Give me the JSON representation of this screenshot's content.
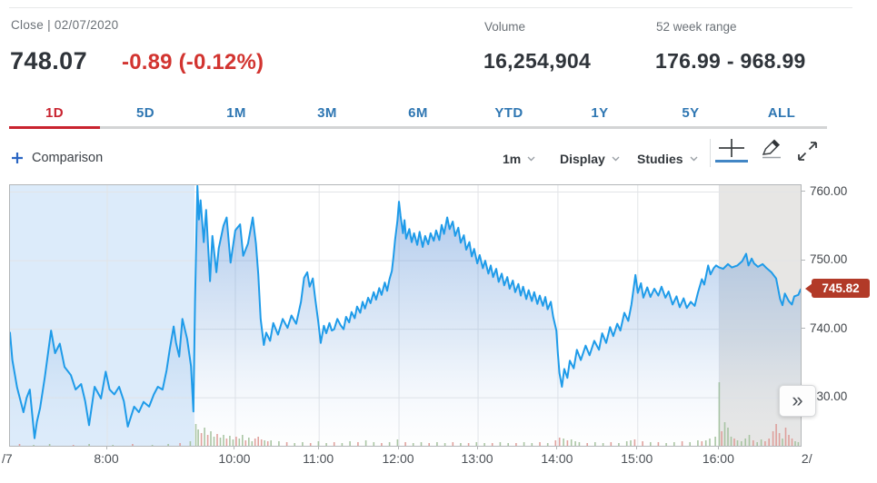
{
  "header": {
    "close_label": "Close | 02/07/2020",
    "price": "748.07",
    "change": "-0.89 (-0.12%)",
    "volume_label": "Volume",
    "volume_value": "16,254,904",
    "range_label": "52 week range",
    "range_value": "176.99 - 968.99"
  },
  "tabs": {
    "items": [
      "1D",
      "5D",
      "1M",
      "3M",
      "6M",
      "YTD",
      "1Y",
      "5Y",
      "ALL"
    ],
    "active_index": 0
  },
  "toolbar": {
    "comparison_label": "Comparison",
    "interval_label": "1m",
    "display_label": "Display",
    "studies_label": "Studies"
  },
  "panel_toggle_glyph": "»",
  "colors": {
    "accent_red": "#c9232f",
    "tab_blue": "#2e76b2",
    "change_red": "#d23430",
    "line_blue": "#1e9be9",
    "badge_red": "#b23a28",
    "premarket_bg": "#dcebfa",
    "afterhours_bg": "#e7e6e4",
    "grid": "#e2e4e7",
    "volume_up": "#9cbd94",
    "volume_down": "#dd918c"
  },
  "chart_data": {
    "type": "line",
    "title": "1D intraday price chart, 1m interval",
    "last_price": 745.82,
    "last_price_label": "745.82",
    "ylim": [
      723,
      761
    ],
    "y_ticks": [
      {
        "label": "760.00",
        "value": 760
      },
      {
        "label": "750.00",
        "value": 750
      },
      {
        "label": "740.00",
        "value": 740
      },
      {
        "label": "730.00",
        "value": 730
      }
    ],
    "x_ticks": [
      {
        "label": "/7",
        "pct": 0.002,
        "grid": false,
        "edge": "left"
      },
      {
        "label": "8:00",
        "pct": 0.123,
        "grid": true
      },
      {
        "label": "10:00",
        "pct": 0.285,
        "grid": true
      },
      {
        "label": "11:00",
        "pct": 0.391,
        "grid": true
      },
      {
        "label": "12:00",
        "pct": 0.492,
        "grid": true
      },
      {
        "label": "13:00",
        "pct": 0.592,
        "grid": true
      },
      {
        "label": "14:00",
        "pct": 0.693,
        "grid": true
      },
      {
        "label": "15:00",
        "pct": 0.794,
        "grid": true
      },
      {
        "label": "16:00",
        "pct": 0.897,
        "grid": true
      },
      {
        "label": "2/",
        "pct": 1.016,
        "grid": false,
        "edge": "right"
      }
    ],
    "sessions": {
      "premarket_end_pct": 0.2333,
      "afterhours_start_pct": 0.8966
    },
    "series_pct_price": [
      [
        0.0,
        739.5
      ],
      [
        0.003,
        735.5
      ],
      [
        0.009,
        731.5
      ],
      [
        0.017,
        727.9
      ],
      [
        0.021,
        730.0
      ],
      [
        0.025,
        731.2
      ],
      [
        0.031,
        724.1
      ],
      [
        0.034,
        726.5
      ],
      [
        0.038,
        728.5
      ],
      [
        0.044,
        733.0
      ],
      [
        0.052,
        739.8
      ],
      [
        0.057,
        736.5
      ],
      [
        0.063,
        737.9
      ],
      [
        0.069,
        734.5
      ],
      [
        0.077,
        733.3
      ],
      [
        0.083,
        731.2
      ],
      [
        0.09,
        732.0
      ],
      [
        0.095,
        729.5
      ],
      [
        0.1,
        726.0
      ],
      [
        0.107,
        731.6
      ],
      [
        0.115,
        729.9
      ],
      [
        0.121,
        733.8
      ],
      [
        0.126,
        731.2
      ],
      [
        0.132,
        730.5
      ],
      [
        0.138,
        731.6
      ],
      [
        0.144,
        729.5
      ],
      [
        0.149,
        725.8
      ],
      [
        0.157,
        728.7
      ],
      [
        0.163,
        727.9
      ],
      [
        0.169,
        729.4
      ],
      [
        0.176,
        728.7
      ],
      [
        0.182,
        730.5
      ],
      [
        0.187,
        731.6
      ],
      [
        0.193,
        731.2
      ],
      [
        0.198,
        734.0
      ],
      [
        0.202,
        737.0
      ],
      [
        0.207,
        740.4
      ],
      [
        0.21,
        738.0
      ],
      [
        0.214,
        736.0
      ],
      [
        0.218,
        741.5
      ],
      [
        0.224,
        738.6
      ],
      [
        0.229,
        734.6
      ],
      [
        0.232,
        728.0
      ],
      [
        0.234,
        744.0
      ],
      [
        0.237,
        760.9
      ],
      [
        0.239,
        756.0
      ],
      [
        0.241,
        758.8
      ],
      [
        0.245,
        752.7
      ],
      [
        0.248,
        757.4
      ],
      [
        0.253,
        747.0
      ],
      [
        0.256,
        753.6
      ],
      [
        0.261,
        748.3
      ],
      [
        0.264,
        751.8
      ],
      [
        0.27,
        755.1
      ],
      [
        0.274,
        756.3
      ],
      [
        0.279,
        749.7
      ],
      [
        0.285,
        754.4
      ],
      [
        0.291,
        755.3
      ],
      [
        0.295,
        750.7
      ],
      [
        0.301,
        752.5
      ],
      [
        0.307,
        756.3
      ],
      [
        0.311,
        752.5
      ],
      [
        0.314,
        748.0
      ],
      [
        0.317,
        741.5
      ],
      [
        0.321,
        737.7
      ],
      [
        0.324,
        739.5
      ],
      [
        0.329,
        738.3
      ],
      [
        0.333,
        740.9
      ],
      [
        0.339,
        739.2
      ],
      [
        0.345,
        741.5
      ],
      [
        0.351,
        740.2
      ],
      [
        0.356,
        742.0
      ],
      [
        0.362,
        740.8
      ],
      [
        0.368,
        744.0
      ],
      [
        0.372,
        747.5
      ],
      [
        0.376,
        748.3
      ],
      [
        0.379,
        746.2
      ],
      [
        0.383,
        747.4
      ],
      [
        0.386,
        744.5
      ],
      [
        0.39,
        741.0
      ],
      [
        0.393,
        738.0
      ],
      [
        0.397,
        740.5
      ],
      [
        0.4,
        739.4
      ],
      [
        0.404,
        740.9
      ],
      [
        0.407,
        739.8
      ],
      [
        0.41,
        740.0
      ],
      [
        0.414,
        741.5
      ],
      [
        0.418,
        740.6
      ],
      [
        0.422,
        740.0
      ],
      [
        0.425,
        741.8
      ],
      [
        0.429,
        741.0
      ],
      [
        0.432,
        742.5
      ],
      [
        0.436,
        741.6
      ],
      [
        0.439,
        743.3
      ],
      [
        0.443,
        742.4
      ],
      [
        0.446,
        744.0
      ],
      [
        0.449,
        743.0
      ],
      [
        0.453,
        744.6
      ],
      [
        0.456,
        743.8
      ],
      [
        0.46,
        745.4
      ],
      [
        0.463,
        744.3
      ],
      [
        0.467,
        746.0
      ],
      [
        0.47,
        745.0
      ],
      [
        0.474,
        746.8
      ],
      [
        0.477,
        745.6
      ],
      [
        0.48,
        747.3
      ],
      [
        0.483,
        748.5
      ],
      [
        0.485,
        750.5
      ],
      [
        0.487,
        753.0
      ],
      [
        0.49,
        755.8
      ],
      [
        0.492,
        758.6
      ],
      [
        0.494,
        756.5
      ],
      [
        0.497,
        754.0
      ],
      [
        0.499,
        755.9
      ],
      [
        0.501,
        753.2
      ],
      [
        0.505,
        754.6
      ],
      [
        0.508,
        752.7
      ],
      [
        0.511,
        754.0
      ],
      [
        0.515,
        752.3
      ],
      [
        0.518,
        754.2
      ],
      [
        0.522,
        752.0
      ],
      [
        0.525,
        753.6
      ],
      [
        0.529,
        752.4
      ],
      [
        0.532,
        754.0
      ],
      [
        0.536,
        752.9
      ],
      [
        0.539,
        754.4
      ],
      [
        0.543,
        753.0
      ],
      [
        0.546,
        755.2
      ],
      [
        0.549,
        753.9
      ],
      [
        0.553,
        756.3
      ],
      [
        0.556,
        754.6
      ],
      [
        0.56,
        755.7
      ],
      [
        0.563,
        753.6
      ],
      [
        0.567,
        754.8
      ],
      [
        0.57,
        752.6
      ],
      [
        0.574,
        753.7
      ],
      [
        0.577,
        751.6
      ],
      [
        0.581,
        752.7
      ],
      [
        0.584,
        750.6
      ],
      [
        0.587,
        751.7
      ],
      [
        0.591,
        749.6
      ],
      [
        0.594,
        750.8
      ],
      [
        0.598,
        748.9
      ],
      [
        0.601,
        750.0
      ],
      [
        0.605,
        748.1
      ],
      [
        0.608,
        749.3
      ],
      [
        0.611,
        747.6
      ],
      [
        0.615,
        748.8
      ],
      [
        0.618,
        746.9
      ],
      [
        0.622,
        748.1
      ],
      [
        0.625,
        746.4
      ],
      [
        0.629,
        747.6
      ],
      [
        0.632,
        745.9
      ],
      [
        0.636,
        747.1
      ],
      [
        0.639,
        745.4
      ],
      [
        0.643,
        746.6
      ],
      [
        0.646,
        744.9
      ],
      [
        0.649,
        746.2
      ],
      [
        0.653,
        744.4
      ],
      [
        0.656,
        745.7
      ],
      [
        0.66,
        744.1
      ],
      [
        0.663,
        745.4
      ],
      [
        0.667,
        743.7
      ],
      [
        0.67,
        744.9
      ],
      [
        0.674,
        743.4
      ],
      [
        0.677,
        744.7
      ],
      [
        0.68,
        742.9
      ],
      [
        0.684,
        744.0
      ],
      [
        0.687,
        741.8
      ],
      [
        0.691,
        739.8
      ],
      [
        0.693,
        736.4
      ],
      [
        0.695,
        733.6
      ],
      [
        0.698,
        731.6
      ],
      [
        0.701,
        734.2
      ],
      [
        0.705,
        732.9
      ],
      [
        0.708,
        735.4
      ],
      [
        0.713,
        734.3
      ],
      [
        0.717,
        737.0
      ],
      [
        0.722,
        735.5
      ],
      [
        0.728,
        737.6
      ],
      [
        0.733,
        736.2
      ],
      [
        0.739,
        738.3
      ],
      [
        0.745,
        737.0
      ],
      [
        0.749,
        739.4
      ],
      [
        0.754,
        738.0
      ],
      [
        0.759,
        740.3
      ],
      [
        0.763,
        739.0
      ],
      [
        0.768,
        740.8
      ],
      [
        0.772,
        739.8
      ],
      [
        0.777,
        742.4
      ],
      [
        0.782,
        741.2
      ],
      [
        0.786,
        743.6
      ],
      [
        0.791,
        747.9
      ],
      [
        0.794,
        745.3
      ],
      [
        0.798,
        746.7
      ],
      [
        0.801,
        744.6
      ],
      [
        0.806,
        746.1
      ],
      [
        0.81,
        744.7
      ],
      [
        0.815,
        745.9
      ],
      [
        0.82,
        744.9
      ],
      [
        0.824,
        746.2
      ],
      [
        0.829,
        744.6
      ],
      [
        0.833,
        745.5
      ],
      [
        0.838,
        743.6
      ],
      [
        0.843,
        744.8
      ],
      [
        0.847,
        743.2
      ],
      [
        0.852,
        744.5
      ],
      [
        0.856,
        743.1
      ],
      [
        0.861,
        744.0
      ],
      [
        0.866,
        743.4
      ],
      [
        0.87,
        745.3
      ],
      [
        0.875,
        747.3
      ],
      [
        0.878,
        746.5
      ],
      [
        0.883,
        749.3
      ],
      [
        0.886,
        748.0
      ],
      [
        0.89,
        748.9
      ],
      [
        0.893,
        749.3
      ],
      [
        0.897,
        749.0
      ],
      [
        0.902,
        748.8
      ],
      [
        0.908,
        749.5
      ],
      [
        0.913,
        749.0
      ],
      [
        0.92,
        749.3
      ],
      [
        0.926,
        749.9
      ],
      [
        0.931,
        751.0
      ],
      [
        0.934,
        749.3
      ],
      [
        0.938,
        750.3
      ],
      [
        0.941,
        749.6
      ],
      [
        0.946,
        749.1
      ],
      [
        0.952,
        749.5
      ],
      [
        0.957,
        748.9
      ],
      [
        0.963,
        748.3
      ],
      [
        0.969,
        747.4
      ],
      [
        0.974,
        744.4
      ],
      [
        0.977,
        743.5
      ],
      [
        0.98,
        745.2
      ],
      [
        0.985,
        744.1
      ],
      [
        0.989,
        743.6
      ],
      [
        0.992,
        744.8
      ],
      [
        0.997,
        745.0
      ],
      [
        1.0,
        745.8
      ]
    ],
    "volume_pct_h_dir": [
      [
        0.012,
        2,
        1
      ],
      [
        0.03,
        1,
        0
      ],
      [
        0.05,
        2,
        0
      ],
      [
        0.08,
        1,
        1
      ],
      [
        0.1,
        2,
        0
      ],
      [
        0.13,
        1,
        0
      ],
      [
        0.155,
        2,
        1
      ],
      [
        0.18,
        1,
        0
      ],
      [
        0.2,
        2,
        0
      ],
      [
        0.215,
        3,
        1
      ],
      [
        0.228,
        5,
        0
      ],
      [
        0.235,
        24,
        0
      ],
      [
        0.238,
        18,
        0
      ],
      [
        0.242,
        14,
        1
      ],
      [
        0.246,
        20,
        0
      ],
      [
        0.25,
        12,
        1
      ],
      [
        0.254,
        16,
        0
      ],
      [
        0.258,
        10,
        0
      ],
      [
        0.262,
        13,
        1
      ],
      [
        0.266,
        9,
        0
      ],
      [
        0.27,
        12,
        0
      ],
      [
        0.274,
        8,
        1
      ],
      [
        0.278,
        11,
        0
      ],
      [
        0.282,
        7,
        0
      ],
      [
        0.286,
        10,
        1
      ],
      [
        0.29,
        8,
        0
      ],
      [
        0.294,
        12,
        0
      ],
      [
        0.298,
        6,
        1
      ],
      [
        0.302,
        9,
        0
      ],
      [
        0.306,
        5,
        0
      ],
      [
        0.31,
        8,
        1
      ],
      [
        0.314,
        10,
        1
      ],
      [
        0.318,
        7,
        1
      ],
      [
        0.322,
        6,
        0
      ],
      [
        0.326,
        5,
        1
      ],
      [
        0.33,
        6,
        0
      ],
      [
        0.34,
        5,
        0
      ],
      [
        0.35,
        4,
        1
      ],
      [
        0.36,
        3,
        0
      ],
      [
        0.37,
        4,
        0
      ],
      [
        0.38,
        3,
        1
      ],
      [
        0.39,
        5,
        0
      ],
      [
        0.4,
        3,
        0
      ],
      [
        0.41,
        4,
        1
      ],
      [
        0.42,
        3,
        0
      ],
      [
        0.43,
        5,
        0
      ],
      [
        0.44,
        4,
        1
      ],
      [
        0.45,
        6,
        0
      ],
      [
        0.46,
        4,
        0
      ],
      [
        0.47,
        3,
        1
      ],
      [
        0.48,
        4,
        0
      ],
      [
        0.49,
        7,
        0
      ],
      [
        0.5,
        4,
        1
      ],
      [
        0.51,
        3,
        0
      ],
      [
        0.52,
        4,
        0
      ],
      [
        0.53,
        3,
        1
      ],
      [
        0.54,
        4,
        0
      ],
      [
        0.55,
        3,
        0
      ],
      [
        0.56,
        4,
        1
      ],
      [
        0.57,
        3,
        0
      ],
      [
        0.58,
        3,
        1
      ],
      [
        0.59,
        4,
        0
      ],
      [
        0.6,
        3,
        0
      ],
      [
        0.61,
        3,
        1
      ],
      [
        0.62,
        4,
        0
      ],
      [
        0.63,
        3,
        0
      ],
      [
        0.64,
        3,
        1
      ],
      [
        0.65,
        4,
        0
      ],
      [
        0.66,
        3,
        0
      ],
      [
        0.67,
        4,
        1
      ],
      [
        0.68,
        3,
        0
      ],
      [
        0.69,
        6,
        1
      ],
      [
        0.695,
        9,
        1
      ],
      [
        0.7,
        8,
        0
      ],
      [
        0.705,
        6,
        1
      ],
      [
        0.71,
        7,
        0
      ],
      [
        0.715,
        5,
        0
      ],
      [
        0.72,
        4,
        0
      ],
      [
        0.73,
        3,
        1
      ],
      [
        0.74,
        4,
        0
      ],
      [
        0.75,
        3,
        0
      ],
      [
        0.76,
        4,
        1
      ],
      [
        0.77,
        3,
        0
      ],
      [
        0.78,
        5,
        0
      ],
      [
        0.785,
        6,
        0
      ],
      [
        0.79,
        7,
        1
      ],
      [
        0.8,
        5,
        1
      ],
      [
        0.81,
        4,
        0
      ],
      [
        0.82,
        4,
        1
      ],
      [
        0.83,
        3,
        0
      ],
      [
        0.84,
        4,
        0
      ],
      [
        0.85,
        5,
        1
      ],
      [
        0.86,
        4,
        0
      ],
      [
        0.87,
        6,
        0
      ],
      [
        0.875,
        5,
        1
      ],
      [
        0.88,
        6,
        0
      ],
      [
        0.885,
        8,
        0
      ],
      [
        0.892,
        10,
        0
      ],
      [
        0.897,
        70,
        0
      ],
      [
        0.9,
        16,
        1
      ],
      [
        0.904,
        26,
        0
      ],
      [
        0.908,
        20,
        0
      ],
      [
        0.912,
        10,
        0
      ],
      [
        0.916,
        8,
        1
      ],
      [
        0.92,
        6,
        0
      ],
      [
        0.925,
        5,
        0
      ],
      [
        0.93,
        8,
        0
      ],
      [
        0.935,
        12,
        0
      ],
      [
        0.94,
        6,
        1
      ],
      [
        0.945,
        4,
        0
      ],
      [
        0.95,
        7,
        0
      ],
      [
        0.955,
        5,
        1
      ],
      [
        0.96,
        8,
        1
      ],
      [
        0.965,
        16,
        1
      ],
      [
        0.969,
        24,
        1
      ],
      [
        0.973,
        14,
        1
      ],
      [
        0.977,
        8,
        0
      ],
      [
        0.981,
        20,
        1
      ],
      [
        0.985,
        12,
        1
      ],
      [
        0.989,
        8,
        1
      ],
      [
        0.993,
        5,
        0
      ],
      [
        0.997,
        4,
        0
      ]
    ]
  }
}
